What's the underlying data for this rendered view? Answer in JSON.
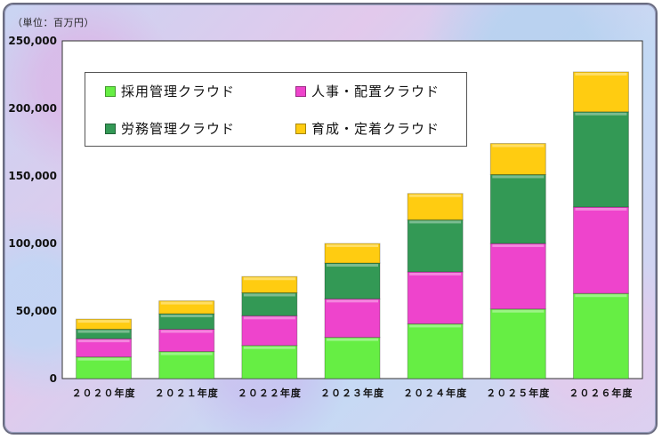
{
  "unit_label": "（単位：百万円）",
  "chart_data": {
    "type": "bar",
    "stacked": true,
    "categories": [
      "２０２０年度",
      "２０２１年度",
      "２０２２年度",
      "２０２３年度",
      "２０２４年度",
      "２０２５年度",
      "２０２６年度"
    ],
    "series": [
      {
        "name": "採用管理クラウド",
        "color": "#66ee44",
        "values": [
          16000,
          20000,
          24500,
          30500,
          40500,
          51500,
          63000
        ]
      },
      {
        "name": "人事・配置クラウド",
        "color": "#ee44cc",
        "values": [
          13500,
          16500,
          22000,
          28500,
          38500,
          48500,
          64000
        ]
      },
      {
        "name": "労務管理クラウド",
        "color": "#339955",
        "values": [
          7000,
          11500,
          17000,
          26500,
          38500,
          51000,
          70500
        ]
      },
      {
        "name": "育成・定着クラウド",
        "color": "#ffcc11",
        "values": [
          7500,
          9500,
          12000,
          14500,
          19500,
          23000,
          29500
        ]
      }
    ],
    "ylim": [
      0,
      250000
    ],
    "yticks": [
      "0",
      "50,000",
      "100,000",
      "150,000",
      "200,000",
      "250,000"
    ],
    "legend_position": "top-left inside",
    "grid": false
  }
}
